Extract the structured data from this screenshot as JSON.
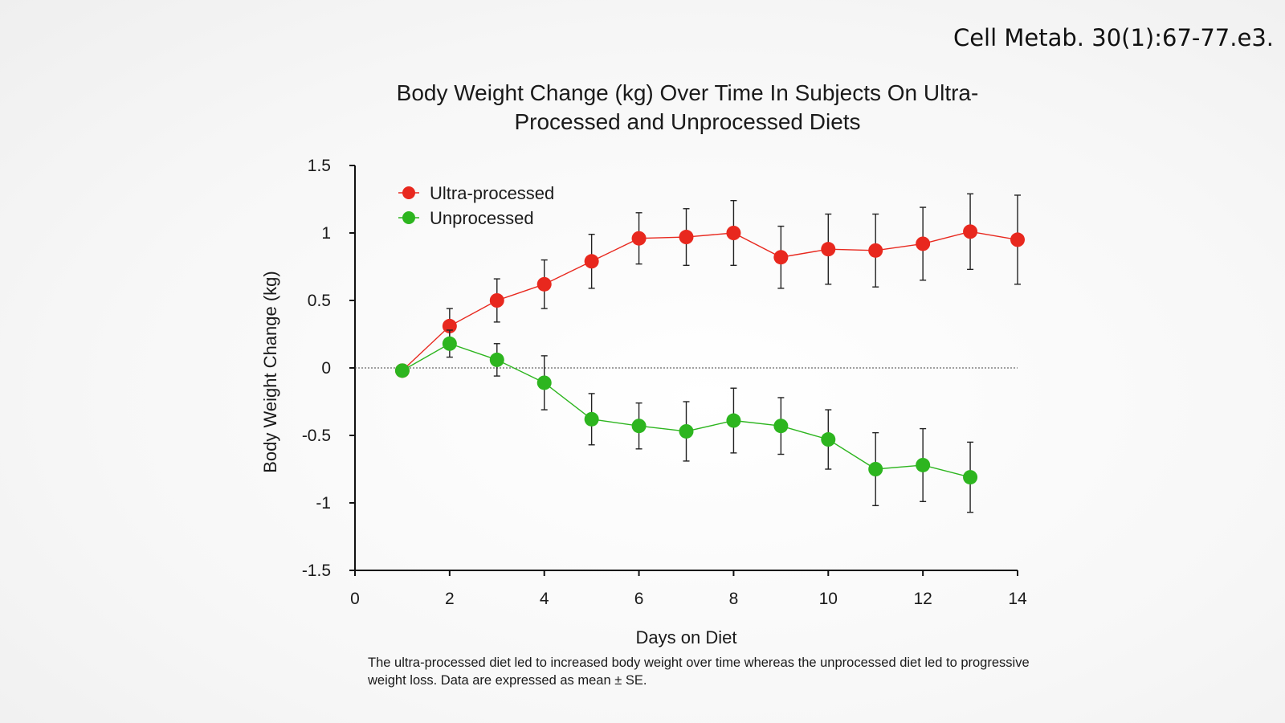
{
  "citation": "Cell Metab. 30(1):67-77.e3.",
  "caption": "The ultra-processed diet led to increased body weight over time whereas the unprocessed diet led to progressive weight loss. Data are expressed as mean ± SE.",
  "chart_data": {
    "type": "line",
    "title_line1": "Body Weight Change (kg) Over Time In Subjects On Ultra-",
    "title_line2": "Processed and Unprocessed Diets",
    "xlabel": "Days on Diet",
    "ylabel": "Body Weight Change (kg)",
    "xlim": [
      0,
      14
    ],
    "ylim": [
      -1.5,
      1.5
    ],
    "xticks": [
      0,
      2,
      4,
      6,
      8,
      10,
      12,
      14
    ],
    "yticks": [
      1.5,
      1,
      0.5,
      0,
      -0.5,
      -1,
      -1.5
    ],
    "ytick_labels": [
      "1.5",
      "1",
      "0.5",
      "0",
      "-0.5",
      "-1",
      "-1.5"
    ],
    "reference_line_y": 0,
    "legend_position": "top-left",
    "series": [
      {
        "name": "Ultra-processed",
        "color": "#e8281e",
        "x": [
          1,
          2,
          3,
          4,
          5,
          6,
          7,
          8,
          9,
          10,
          11,
          12,
          13,
          14
        ],
        "y": [
          -0.02,
          0.31,
          0.5,
          0.62,
          0.79,
          0.96,
          0.97,
          1.0,
          0.82,
          0.88,
          0.87,
          0.92,
          1.01,
          0.95
        ],
        "err": [
          0,
          0.13,
          0.16,
          0.18,
          0.2,
          0.19,
          0.21,
          0.24,
          0.23,
          0.26,
          0.27,
          0.27,
          0.28,
          0.33
        ]
      },
      {
        "name": "Unprocessed",
        "color": "#2db51f",
        "x": [
          1,
          2,
          3,
          4,
          5,
          6,
          7,
          8,
          9,
          10,
          11,
          12,
          13
        ],
        "y": [
          -0.02,
          0.18,
          0.06,
          -0.11,
          -0.38,
          -0.43,
          -0.47,
          -0.39,
          -0.43,
          -0.53,
          -0.75,
          -0.72,
          -0.81
        ],
        "err": [
          0,
          0.1,
          0.12,
          0.2,
          0.19,
          0.17,
          0.22,
          0.24,
          0.21,
          0.22,
          0.27,
          0.27,
          0.26
        ]
      }
    ]
  }
}
